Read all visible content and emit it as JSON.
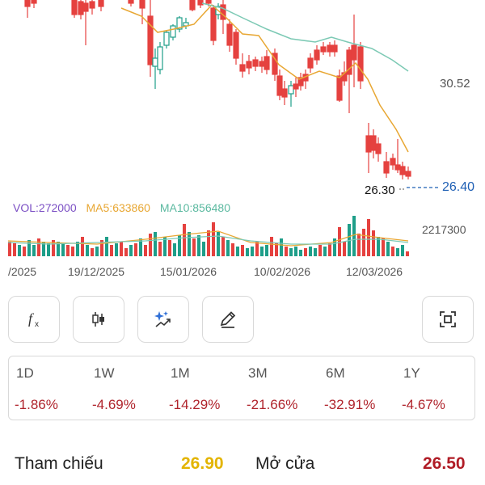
{
  "chart": {
    "price_axis_label": "30.52",
    "last_price_left": "26.30",
    "last_price_right": "26.40",
    "volume": {
      "vol_label": "VOL:272000",
      "ma5_label": "MA5:633860",
      "ma10_label": "MA10:856480",
      "max_label": "2217300"
    },
    "x_dates": [
      "/2025",
      "19/12/2025",
      "15/01/2026",
      "10/02/2026",
      "12/03/2026"
    ],
    "colors": {
      "up": "#1e9e89",
      "down": "#e5413f",
      "ma5": "#e8a733",
      "ma10": "#7cc9b4",
      "vol": "#7b4fc4"
    }
  },
  "toolbar": {
    "icons": [
      "function-icon",
      "candlestick-icon",
      "ai-sparkle-icon",
      "pencil-icon",
      "fullscreen-icon"
    ]
  },
  "performance": {
    "periods": [
      {
        "label": "1D",
        "change": "-1.86%"
      },
      {
        "label": "1W",
        "change": "-4.69%"
      },
      {
        "label": "1M",
        "change": "-14.29%"
      },
      {
        "label": "3M",
        "change": "-21.66%"
      },
      {
        "label": "6M",
        "change": "-32.91%"
      },
      {
        "label": "1Y",
        "change": "-4.67%"
      }
    ]
  },
  "quote": {
    "reference_label": "Tham chiếu",
    "reference_value": "26.90",
    "open_label": "Mở cửa",
    "open_value": "26.50"
  }
}
